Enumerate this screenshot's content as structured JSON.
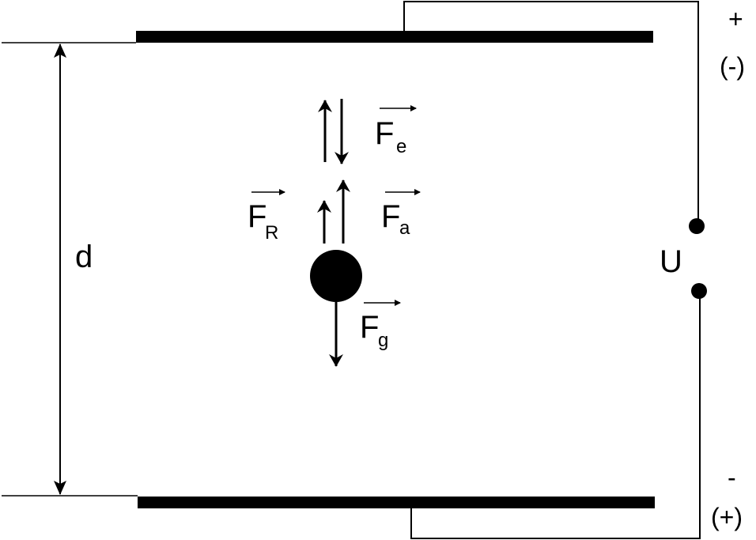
{
  "colors": {
    "ink": "#000000",
    "background": "#ffffff"
  },
  "labels": {
    "distance": "d",
    "voltage": "U",
    "top_polarity": "+",
    "top_polarity_alt": "(-)",
    "bottom_polarity": "-",
    "bottom_polarity_alt": "(+)"
  },
  "forces": {
    "electric": {
      "symbol": "F",
      "subscript": "e"
    },
    "buoyancy": {
      "symbol": "F",
      "subscript": "a"
    },
    "friction": {
      "symbol": "F",
      "subscript": "R"
    },
    "gravity": {
      "symbol": "F",
      "subscript": "g"
    }
  }
}
